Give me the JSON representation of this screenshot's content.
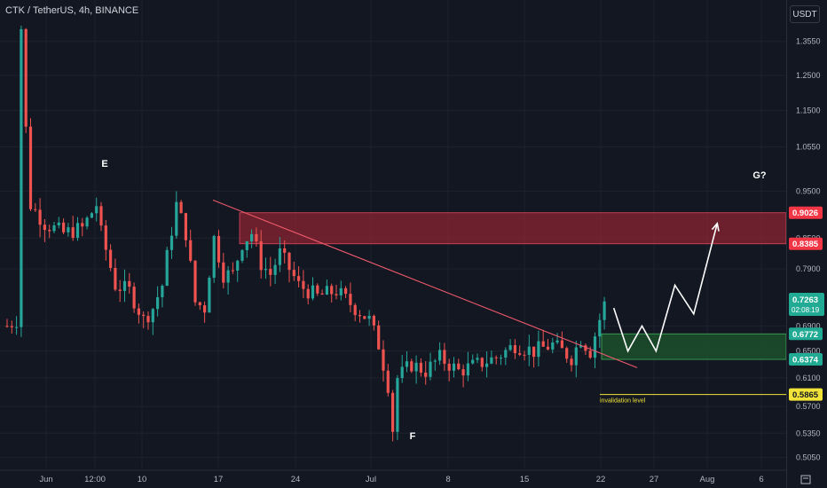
{
  "header": {
    "title": "CTK / TetherUS, 4h, BINANCE"
  },
  "axis_unit": "USDT",
  "colors": {
    "background": "#131722",
    "grid": "#1e222d",
    "up": "#26a69a",
    "down": "#ef5350",
    "resistance_zone": "#8b2432",
    "support_zone": "#1c4d2a",
    "trendline": "#f05a6b",
    "invalidation": "#f2e338",
    "projection": "#ffffff"
  },
  "chart_data": {
    "type": "candlestick",
    "title": "CTK / TetherUS, 4h, BINANCE",
    "x_tick_labels": [
      "Jun",
      "12:00",
      "10",
      "17",
      "24",
      "Jul",
      "8",
      "15",
      "22",
      "27",
      "Aug",
      "6"
    ],
    "y_scale": "log",
    "y_tick_labels": [
      "1.3550",
      "1.2500",
      "1.1500",
      "1.0550",
      "0.9500",
      "0.8500",
      "0.7900",
      "0.6900",
      "0.6500",
      "0.6100",
      "0.5700",
      "0.5350",
      "0.5050"
    ],
    "y_ticks": [
      1.355,
      1.25,
      1.15,
      1.055,
      0.95,
      0.85,
      0.79,
      0.69,
      0.65,
      0.61,
      0.57,
      0.535,
      0.505
    ],
    "ylim": [
      0.49,
      1.47
    ],
    "approx_close_path": [
      [
        0,
        0.69
      ],
      [
        2,
        0.7
      ],
      [
        3,
        1.4
      ],
      [
        4,
        1.1
      ],
      [
        5,
        0.92
      ],
      [
        8,
        0.88
      ],
      [
        12,
        0.86
      ],
      [
        16,
        0.87
      ],
      [
        19,
        0.92
      ],
      [
        20,
        0.86
      ],
      [
        23,
        0.76
      ],
      [
        26,
        0.75
      ],
      [
        29,
        0.7
      ],
      [
        31,
        0.72
      ],
      [
        33,
        0.76
      ],
      [
        36,
        0.92
      ],
      [
        38,
        0.86
      ],
      [
        40,
        0.73
      ],
      [
        42,
        0.72
      ],
      [
        44,
        0.85
      ],
      [
        46,
        0.78
      ],
      [
        48,
        0.78
      ],
      [
        50,
        0.84
      ],
      [
        52,
        0.86
      ],
      [
        54,
        0.8
      ],
      [
        56,
        0.78
      ],
      [
        58,
        0.82
      ],
      [
        62,
        0.76
      ],
      [
        66,
        0.74
      ],
      [
        70,
        0.75
      ],
      [
        74,
        0.72
      ],
      [
        77,
        0.7
      ],
      [
        79,
        0.66
      ],
      [
        81,
        0.6
      ],
      [
        82,
        0.54
      ],
      [
        83,
        0.61
      ],
      [
        86,
        0.63
      ],
      [
        89,
        0.62
      ],
      [
        92,
        0.64
      ],
      [
        96,
        0.62
      ],
      [
        100,
        0.63
      ],
      [
        104,
        0.64
      ],
      [
        108,
        0.66
      ],
      [
        112,
        0.65
      ],
      [
        116,
        0.66
      ],
      [
        120,
        0.64
      ],
      [
        122,
        0.67
      ],
      [
        124,
        0.65
      ],
      [
        127,
        0.7263
      ]
    ],
    "last_price": "0.7263",
    "countdown": "02:08:19",
    "zones": [
      {
        "name": "resistance",
        "low": 0.8385,
        "high": 0.9026,
        "low_label": "0.8385",
        "high_label": "0.9026"
      },
      {
        "name": "support",
        "low": 0.6374,
        "high": 0.6772,
        "low_label": "0.6374",
        "high_label": "0.6772"
      }
    ],
    "invalidation": {
      "price": 0.5865,
      "label": "0.5865",
      "text": "invalidation level"
    },
    "wave_labels": [
      "E",
      "F",
      "G?"
    ],
    "projection_path": [
      [
        129,
        0.72
      ],
      [
        132,
        0.65
      ],
      [
        135,
        0.69
      ],
      [
        138,
        0.65
      ],
      [
        142,
        0.76
      ],
      [
        146,
        0.71
      ],
      [
        151,
        0.88
      ]
    ]
  }
}
